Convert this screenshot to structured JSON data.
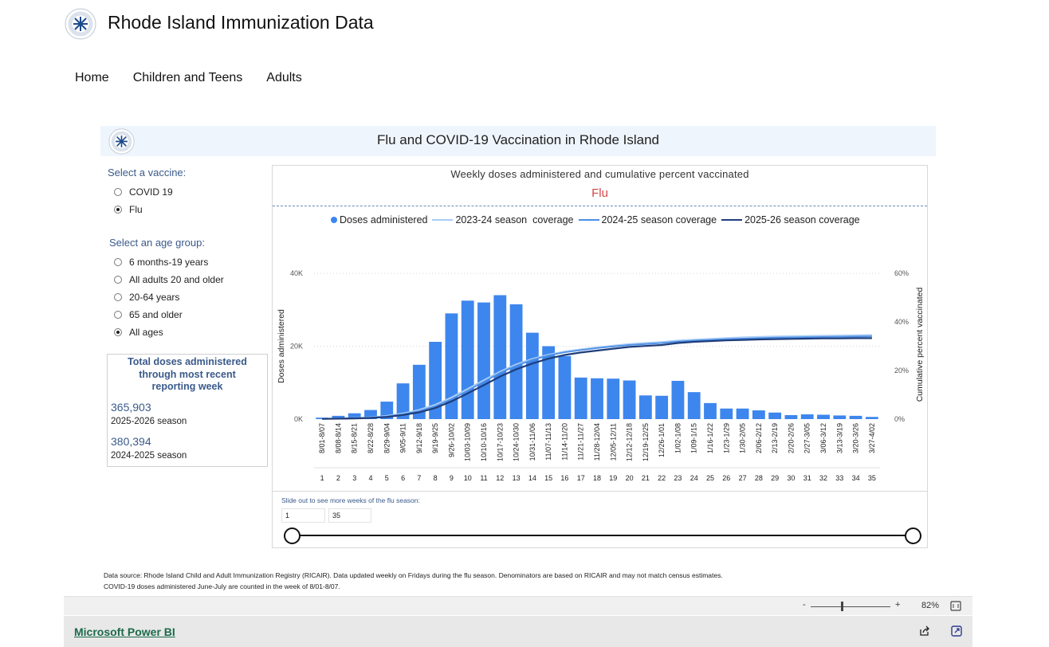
{
  "site": {
    "title": "Rhode Island Immunization Data",
    "nav": [
      "Home",
      "Children and Teens",
      "Adults"
    ]
  },
  "report": {
    "banner_title": "Flu and COVID-19 Vaccination in Rhode Island",
    "vaccine_label": "Select a vaccine:",
    "vaccines": [
      {
        "label": "COVID 19",
        "selected": false
      },
      {
        "label": "Flu",
        "selected": true
      }
    ],
    "age_label": "Select an age group:",
    "ages": [
      {
        "label": "6 months-19 years",
        "selected": false
      },
      {
        "label": "All adults 20 and older",
        "selected": false
      },
      {
        "label": "20-64 years",
        "selected": false
      },
      {
        "label": "65 and older",
        "selected": false
      },
      {
        "label": "All ages",
        "selected": true
      }
    ],
    "totals": {
      "heading": [
        "Total doses administered",
        "through most recent",
        "reporting week"
      ],
      "value1": "365,903",
      "season1": "2025-2026 season",
      "value2": "380,394",
      "season2": "2024-2025 season"
    },
    "slicer": {
      "note": "Slide out to see more weeks of the flu season:",
      "from": "1",
      "to": "35"
    },
    "footnote1": "Data source: Rhode Island Child and Adult Immunization Registry (RICAIR). Data updated weekly on Fridays during the flu season. Denominators are based on RICAIR and may not match census estimates.",
    "footnote2": "COVID-19 doses administered June-July are counted in the week of 8/01-8/07."
  },
  "pbi": {
    "zoom_minus": "-",
    "zoom_plus": "+",
    "zoom_level": "82%",
    "link": "Microsoft Power BI"
  },
  "colors": {
    "bar": "#3d86ee",
    "line_2023_24": "#a9cdf5",
    "line_2024_25": "#4c8fe6",
    "line_2025_26": "#1f3d7a"
  },
  "chart_data": {
    "type": "bar",
    "title": "Weekly doses administered and cumulative percent vaccinated",
    "subtitle": "Flu",
    "ylabel": "Doses administered",
    "y2label": "Cumulative percent vaccinated",
    "ylim": [
      0,
      40000
    ],
    "yticks": [
      "0K",
      "20K",
      "40K"
    ],
    "y2lim": [
      0,
      60
    ],
    "y2ticks": [
      "0%",
      "20%",
      "40%",
      "60%"
    ],
    "legend_position": "top",
    "categories": [
      "8/01-8/07",
      "8/08-8/14",
      "8/15-8/21",
      "8/22-8/28",
      "8/29-9/04",
      "9/05-9/11",
      "9/12-9/18",
      "9/19-9/25",
      "9/26-10/02",
      "10/03-10/09",
      "10/10-10/16",
      "10/17-10/23",
      "10/24-10/30",
      "10/31-11/06",
      "11/07-11/13",
      "11/14-11/20",
      "11/21-11/27",
      "11/28-12/04",
      "12/05-12/11",
      "12/12-12/18",
      "12/19-12/25",
      "12/26-1/01",
      "1/02-1/08",
      "1/09-1/15",
      "1/16-1/22",
      "1/23-1/29",
      "1/30-2/05",
      "2/06-2/12",
      "2/13-2/19",
      "2/20-2/26",
      "2/27-3/05",
      "3/06-3/12",
      "3/13-3/19",
      "3/20-3/26",
      "3/27-4/02"
    ],
    "week_numbers": [
      "1",
      "2",
      "3",
      "4",
      "5",
      "6",
      "7",
      "8",
      "9",
      "10",
      "11",
      "12",
      "13",
      "14",
      "15",
      "16",
      "17",
      "18",
      "19",
      "20",
      "21",
      "22",
      "23",
      "24",
      "25",
      "26",
      "27",
      "28",
      "29",
      "30",
      "31",
      "32",
      "33",
      "34",
      "35"
    ],
    "series": [
      {
        "name": "Doses administered",
        "type": "bar",
        "axis": "left",
        "values": [
          400,
          900,
          1600,
          2500,
          4800,
          9800,
          14900,
          21200,
          29000,
          32500,
          32000,
          34000,
          31500,
          23700,
          20000,
          17300,
          11400,
          11200,
          11100,
          10600,
          6500,
          6400,
          10500,
          7400,
          4400,
          2900,
          2900,
          2400,
          1800,
          1100,
          1300,
          1200,
          1000,
          900,
          600
        ]
      },
      {
        "name": "2023-24 season  coverage",
        "type": "line",
        "axis": "right",
        "values": [
          0.1,
          0.2,
          0.4,
          0.7,
          1.3,
          2.3,
          3.8,
          5.9,
          8.9,
          12.4,
          16.0,
          19.5,
          22.5,
          24.8,
          26.5,
          27.8,
          28.7,
          29.5,
          30.2,
          30.9,
          31.3,
          31.7,
          32.3,
          32.7,
          33.0,
          33.3,
          33.6,
          33.8,
          34.0,
          34.1,
          34.2,
          34.3,
          34.4,
          34.5,
          34.6
        ]
      },
      {
        "name": "2024-25 season coverage",
        "type": "line",
        "axis": "right",
        "values": [
          0.1,
          0.2,
          0.3,
          0.6,
          1.1,
          2.0,
          3.3,
          5.3,
          8.2,
          11.7,
          15.4,
          19.0,
          22.0,
          24.4,
          26.2,
          27.5,
          28.4,
          29.2,
          29.9,
          30.5,
          30.9,
          31.3,
          31.9,
          32.3,
          32.6,
          32.9,
          33.1,
          33.3,
          33.5,
          33.6,
          33.7,
          33.8,
          33.9,
          34.0,
          34.1
        ]
      },
      {
        "name": "2025-26 season coverage",
        "type": "line",
        "axis": "right",
        "values": [
          0.1,
          0.2,
          0.3,
          0.5,
          0.9,
          1.7,
          2.8,
          4.6,
          7.3,
          10.6,
          14.0,
          17.5,
          20.5,
          22.9,
          24.9,
          26.4,
          27.4,
          28.2,
          29.0,
          29.7,
          30.1,
          30.5,
          31.3,
          31.8,
          32.1,
          32.4,
          32.6,
          32.8,
          32.9,
          33.0,
          33.1,
          33.2,
          33.2,
          33.3,
          33.3
        ]
      }
    ]
  }
}
